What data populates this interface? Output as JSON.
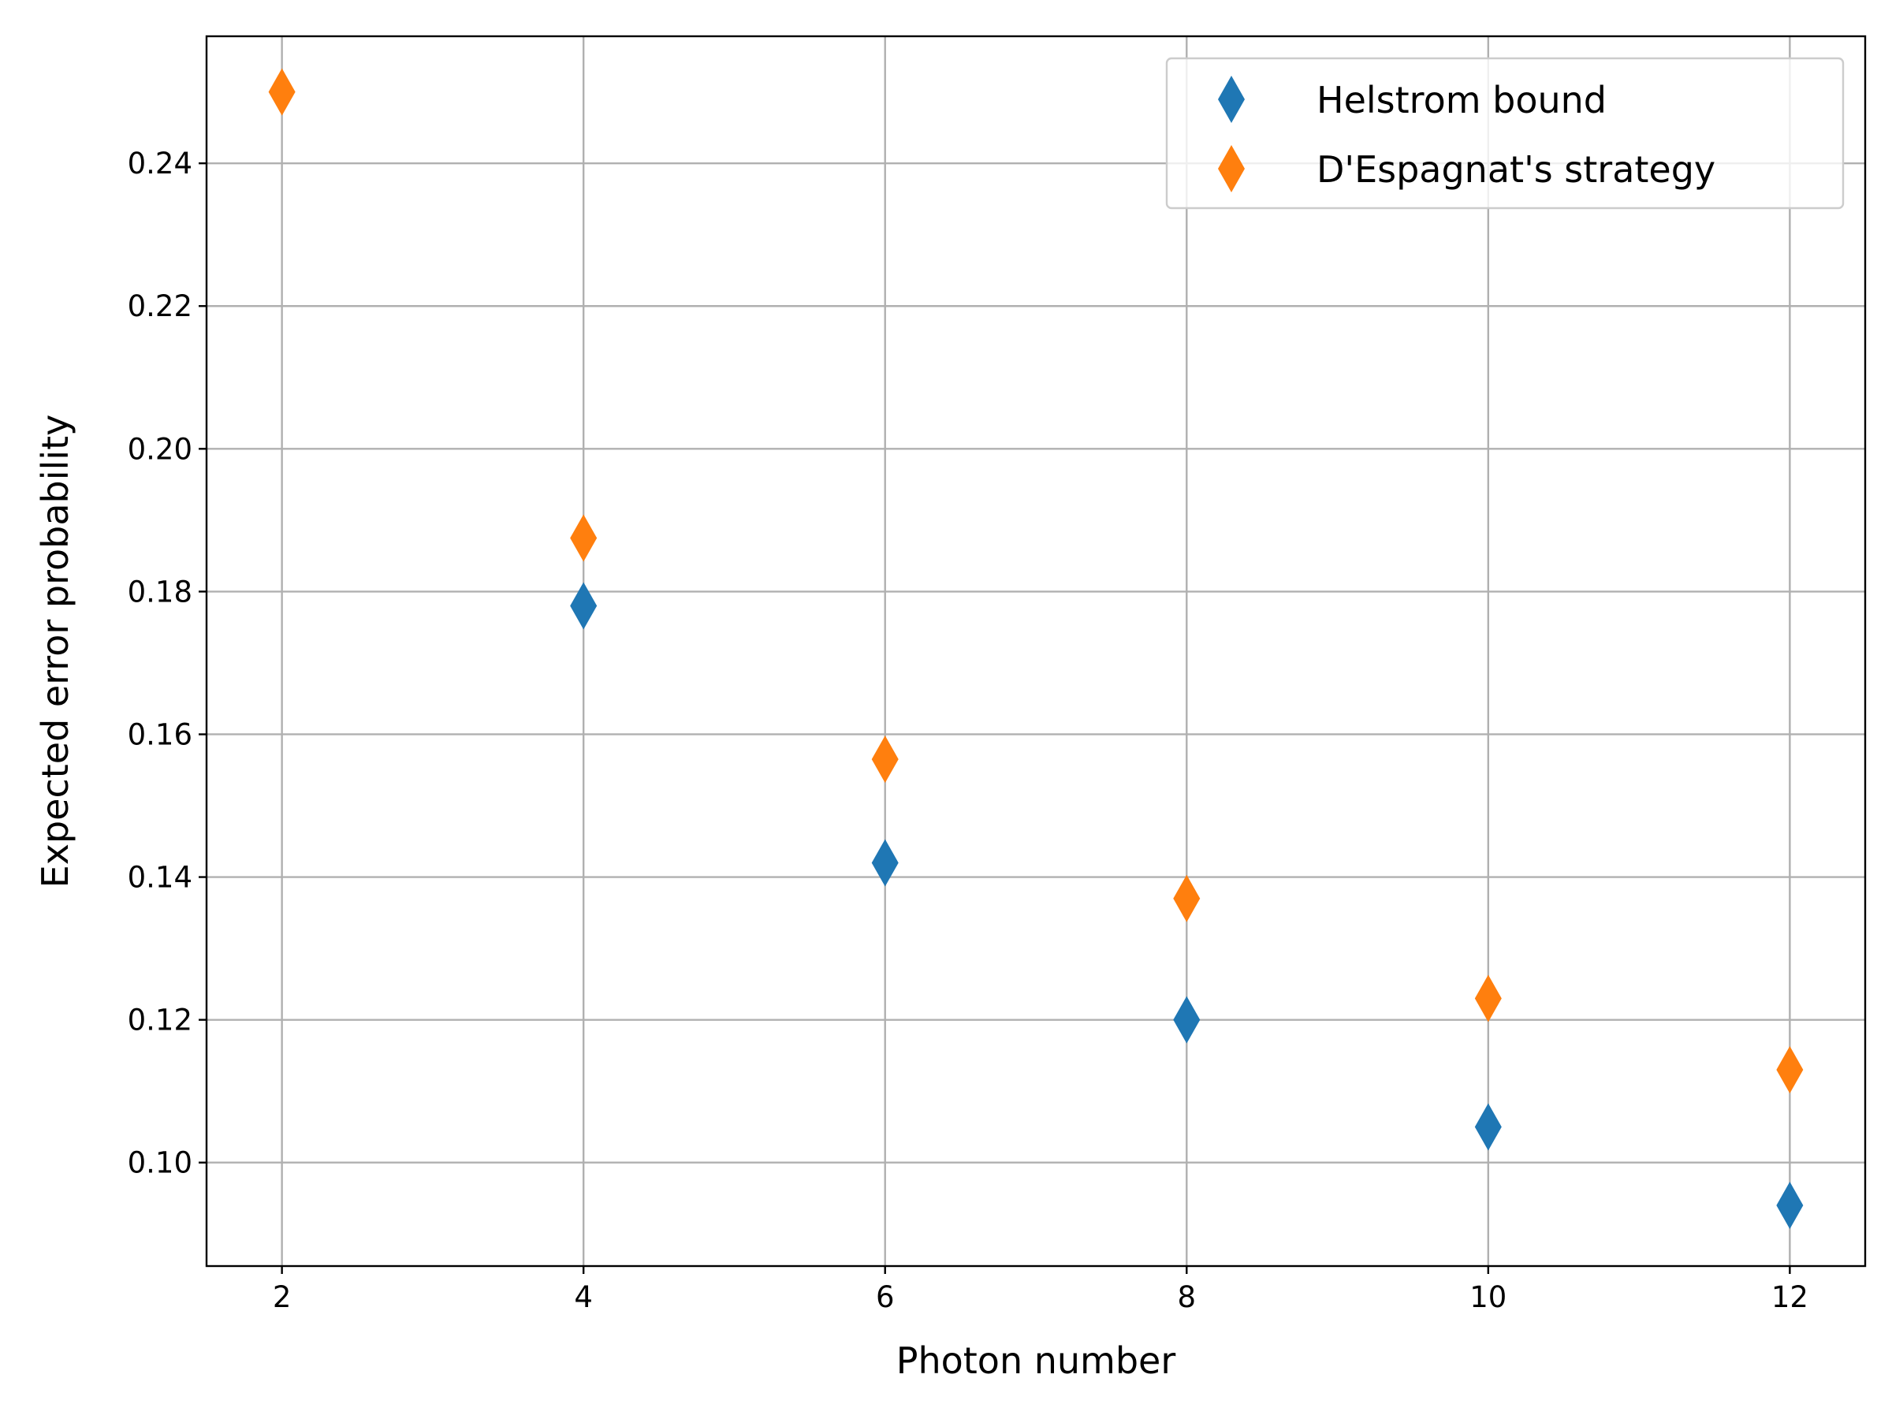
{
  "chart_data": {
    "type": "scatter",
    "title": "",
    "xlabel": "Photon number",
    "ylabel": "Expected error probability",
    "x": [
      2,
      4,
      6,
      8,
      10,
      12
    ],
    "xlim": [
      1.5,
      12.5
    ],
    "ylim": [
      0.0855,
      0.2578
    ],
    "xticks": [
      2,
      4,
      6,
      8,
      10,
      12
    ],
    "xtick_labels": [
      "2",
      "4",
      "6",
      "8",
      "10",
      "12"
    ],
    "yticks": [
      0.1,
      0.12,
      0.14,
      0.16,
      0.18,
      0.2,
      0.22,
      0.24
    ],
    "ytick_labels": [
      "0.10",
      "0.12",
      "0.14",
      "0.16",
      "0.18",
      "0.20",
      "0.22",
      "0.24"
    ],
    "grid": true,
    "legend_position": "top-right",
    "marker": "thin-diamond",
    "series": [
      {
        "name": "Helstrom bound",
        "color": "#1f77b4",
        "x": [
          4,
          6,
          8,
          10,
          12
        ],
        "values": [
          0.178,
          0.142,
          0.12,
          0.105,
          0.094
        ]
      },
      {
        "name": "D'Espagnat's strategy",
        "color": "#ff7f0e",
        "x": [
          2,
          4,
          6,
          8,
          10,
          12
        ],
        "values": [
          0.25,
          0.1875,
          0.1565,
          0.137,
          0.123,
          0.113
        ]
      }
    ]
  }
}
